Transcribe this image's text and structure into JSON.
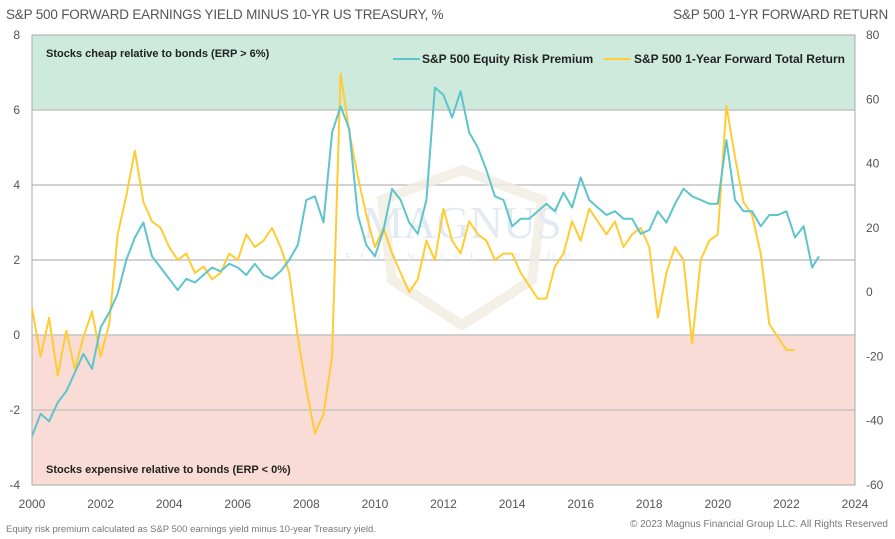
{
  "header": {
    "left_title": "S&P 500 FORWARD EARNINGS YIELD MINUS 10-YR US TREASURY, %",
    "right_title": "S&P 500 1-YR FORWARD RETURN"
  },
  "footer": {
    "footnote": "Equity risk premium calculated as S&P 500 earnings yield minus 10-year Treasury yield.",
    "copyright": "© 2023 Magnus Financial Group LLC. All Rights Reserved"
  },
  "watermark": {
    "line1": "MAGNUS",
    "line2": "FINANCIAL GROUP"
  },
  "chart_data": {
    "type": "line",
    "title": "S&P 500 FORWARD EARNINGS YIELD MINUS 10-YR US TREASURY, %",
    "ylabel": "S&P 500 FORWARD EARNINGS YIELD MINUS 10-YR US TREASURY, %",
    "y2label": "S&P 500 1-YR FORWARD RETURN",
    "xlabel": "",
    "xlim": [
      2000,
      2024
    ],
    "ylim": [
      -4,
      8
    ],
    "y2lim": [
      -60,
      80
    ],
    "x_ticks": [
      "2000",
      "2002",
      "2004",
      "2006",
      "2008",
      "2010",
      "2012",
      "2014",
      "2016",
      "2018",
      "2020",
      "2022",
      "2024"
    ],
    "y_ticks": [
      "8",
      "6",
      "4",
      "2",
      "0",
      "-2",
      "-4"
    ],
    "y2_ticks": [
      "80",
      "60",
      "40",
      "20",
      "0",
      "-20",
      "-40",
      "-60"
    ],
    "grid": true,
    "legend_position": "top-right",
    "colors": {
      "erp": "#5ec4cc",
      "fwd": "#ffcc33",
      "cheap_band": "#cdeadd",
      "expensive_band": "#f9dcd5"
    },
    "bands": [
      {
        "label": "Stocks cheap relative to bonds (ERP > 6%)",
        "from": 6,
        "to": 8
      },
      {
        "label": "Stocks expensive relative to bonds (ERP < 0%)",
        "from": -4,
        "to": 0
      }
    ],
    "series": [
      {
        "name": "S&P 500 Equity Risk Premium",
        "axis": "left",
        "x": [
          2000.0,
          2000.25,
          2000.5,
          2000.75,
          2001.0,
          2001.25,
          2001.5,
          2001.75,
          2002.0,
          2002.25,
          2002.5,
          2002.75,
          2003.0,
          2003.25,
          2003.5,
          2003.75,
          2004.0,
          2004.25,
          2004.5,
          2004.75,
          2005.0,
          2005.25,
          2005.5,
          2005.75,
          2006.0,
          2006.25,
          2006.5,
          2006.75,
          2007.0,
          2007.25,
          2007.5,
          2007.75,
          2008.0,
          2008.25,
          2008.5,
          2008.75,
          2009.0,
          2009.25,
          2009.5,
          2009.75,
          2010.0,
          2010.25,
          2010.5,
          2010.75,
          2011.0,
          2011.25,
          2011.5,
          2011.75,
          2012.0,
          2012.25,
          2012.5,
          2012.75,
          2013.0,
          2013.25,
          2013.5,
          2013.75,
          2014.0,
          2014.25,
          2014.5,
          2014.75,
          2015.0,
          2015.25,
          2015.5,
          2015.75,
          2016.0,
          2016.25,
          2016.5,
          2016.75,
          2017.0,
          2017.25,
          2017.5,
          2017.75,
          2018.0,
          2018.25,
          2018.5,
          2018.75,
          2019.0,
          2019.25,
          2019.5,
          2019.75,
          2020.0,
          2020.25,
          2020.5,
          2020.75,
          2021.0,
          2021.25,
          2021.5,
          2021.75,
          2022.0,
          2022.25,
          2022.5,
          2022.75,
          2022.95
        ],
        "values": [
          -2.7,
          -2.1,
          -2.3,
          -1.8,
          -1.5,
          -1.0,
          -0.5,
          -0.9,
          0.2,
          0.6,
          1.1,
          2.0,
          2.6,
          3.0,
          2.1,
          1.8,
          1.5,
          1.2,
          1.5,
          1.4,
          1.6,
          1.8,
          1.7,
          1.9,
          1.8,
          1.6,
          1.9,
          1.6,
          1.5,
          1.7,
          2.0,
          2.4,
          3.6,
          3.7,
          3.0,
          5.4,
          6.1,
          5.5,
          3.2,
          2.4,
          2.1,
          2.8,
          3.9,
          3.6,
          3.0,
          2.7,
          3.6,
          6.6,
          6.4,
          5.8,
          6.5,
          5.4,
          5.0,
          4.4,
          3.7,
          3.6,
          2.9,
          3.1,
          3.1,
          3.3,
          3.5,
          3.3,
          3.8,
          3.4,
          4.2,
          3.6,
          3.4,
          3.2,
          3.3,
          3.1,
          3.1,
          2.7,
          2.8,
          3.3,
          3.0,
          3.5,
          3.9,
          3.7,
          3.6,
          3.5,
          3.5,
          5.2,
          3.6,
          3.3,
          3.3,
          2.9,
          3.2,
          3.2,
          3.3,
          2.6,
          2.9,
          1.8,
          2.1
        ]
      },
      {
        "name": "S&P 500 1-Year Forward Total Return",
        "axis": "right",
        "x": [
          2000.0,
          2000.25,
          2000.5,
          2000.75,
          2001.0,
          2001.25,
          2001.5,
          2001.75,
          2002.0,
          2002.25,
          2002.5,
          2002.75,
          2003.0,
          2003.25,
          2003.5,
          2003.75,
          2004.0,
          2004.25,
          2004.5,
          2004.75,
          2005.0,
          2005.25,
          2005.5,
          2005.75,
          2006.0,
          2006.25,
          2006.5,
          2006.75,
          2007.0,
          2007.25,
          2007.5,
          2007.75,
          2008.0,
          2008.25,
          2008.5,
          2008.75,
          2009.0,
          2009.25,
          2009.5,
          2009.75,
          2010.0,
          2010.25,
          2010.5,
          2010.75,
          2011.0,
          2011.25,
          2011.5,
          2011.75,
          2012.0,
          2012.25,
          2012.5,
          2012.75,
          2013.0,
          2013.25,
          2013.5,
          2013.75,
          2014.0,
          2014.25,
          2014.5,
          2014.75,
          2015.0,
          2015.25,
          2015.5,
          2015.75,
          2016.0,
          2016.25,
          2016.5,
          2016.75,
          2017.0,
          2017.25,
          2017.5,
          2017.75,
          2018.0,
          2018.25,
          2018.5,
          2018.75,
          2019.0,
          2019.25,
          2019.5,
          2019.75,
          2020.0,
          2020.25,
          2020.5,
          2020.75,
          2021.0,
          2021.25,
          2021.5,
          2021.75,
          2022.0,
          2022.25
        ],
        "values": [
          -5,
          -20,
          -8,
          -26,
          -12,
          -24,
          -14,
          -6,
          -20,
          -10,
          18,
          30,
          44,
          28,
          22,
          20,
          14,
          10,
          12,
          6,
          8,
          4,
          6,
          12,
          10,
          18,
          14,
          16,
          20,
          14,
          6,
          -14,
          -30,
          -44,
          -38,
          -20,
          68,
          50,
          36,
          24,
          14,
          20,
          12,
          6,
          0,
          4,
          16,
          10,
          26,
          16,
          12,
          22,
          18,
          16,
          10,
          12,
          12,
          6,
          2,
          -2,
          -2,
          8,
          12,
          22,
          16,
          26,
          22,
          18,
          22,
          14,
          18,
          20,
          14,
          -8,
          6,
          14,
          10,
          -16,
          10,
          16,
          18,
          58,
          42,
          28,
          24,
          12,
          -10,
          -14,
          -18,
          -18
        ]
      }
    ]
  }
}
